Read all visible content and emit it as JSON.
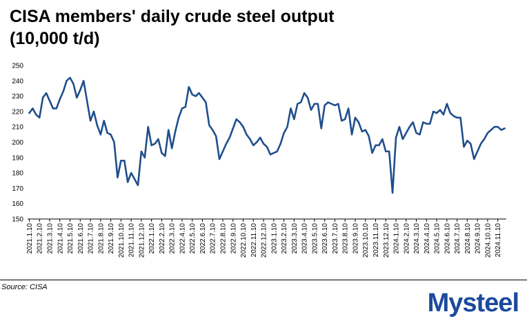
{
  "header": {
    "title_line1": "CISA members' daily crude steel output",
    "title_line2": "(10,000 t/d)"
  },
  "footer": {
    "source": "Source: CISA",
    "logo_text": "Mysteel",
    "logo_color": "#1c4a9c"
  },
  "chart_data": {
    "type": "line",
    "title": "CISA members' daily crude steel output (10,000 t/d)",
    "xlabel": "",
    "ylabel": "",
    "ylim": [
      150,
      250
    ],
    "yticks": [
      150,
      160,
      170,
      180,
      190,
      200,
      210,
      220,
      230,
      240,
      250
    ],
    "grid": false,
    "legend": "none",
    "line_color": "#1f4e8c",
    "x_tick_labels": [
      "2021.1.10",
      "2021.2.10",
      "2021.3.10",
      "2021.4.10",
      "2021.5.10",
      "2021.6.10",
      "2021.7.10",
      "2021.8.10",
      "2021.9.10",
      "2021.10.10",
      "2021.11.10",
      "2021.12.10",
      "2022.1.10",
      "2022.2.10",
      "2022.3.10",
      "2022.4.10",
      "2022.5.10",
      "2022.6.10",
      "2022.7.10",
      "2022.8.10",
      "2022.9.10",
      "2022.10.10",
      "2022.11.10",
      "2022.12.10",
      "2023.1.10",
      "2023.2.10",
      "2023.3.10",
      "2023.4.10",
      "2023.5.10",
      "2023.6.10",
      "2023.7.10",
      "2023.8.10",
      "2023.9.10",
      "2023.10.10",
      "2023.11.10",
      "2023.12.10",
      "2024.1.10",
      "2024.2.10",
      "2024.3.10",
      "2024.4.10",
      "2024.5.10",
      "2024.6.10",
      "2024.7.10",
      "2024.8.10",
      "2024.9.10",
      "2024.10.10",
      "2024.11.10"
    ],
    "series": [
      {
        "values": [
          219,
          222,
          218,
          216,
          229,
          232,
          227,
          222,
          222,
          228,
          233,
          240,
          242,
          238,
          229,
          234,
          240,
          227,
          214,
          220,
          211,
          205,
          214,
          206,
          205,
          200,
          177,
          188,
          188,
          174,
          180,
          176,
          172,
          194,
          190,
          210,
          198,
          199,
          202,
          193,
          191,
          208,
          196,
          207,
          216,
          222,
          223,
          236,
          231,
          230,
          232,
          229,
          226,
          211,
          208,
          204,
          189,
          194,
          199,
          203,
          209,
          215,
          213,
          210,
          205,
          202,
          198,
          200,
          203,
          199,
          197,
          192,
          193,
          194,
          199,
          206,
          210,
          222,
          215,
          225,
          226,
          232,
          229,
          221,
          225,
          225,
          209,
          224,
          226,
          225,
          224,
          225,
          214,
          215,
          222,
          205,
          216,
          213,
          207,
          208,
          204,
          193,
          198,
          198,
          202,
          194,
          194,
          167,
          203,
          210,
          202,
          206,
          210,
          213,
          206,
          205,
          213,
          212,
          212,
          220,
          219,
          221,
          218,
          225,
          219,
          217,
          216,
          216,
          197,
          201,
          199,
          189,
          194,
          199,
          202,
          206,
          208,
          210,
          210,
          208,
          209
        ]
      }
    ]
  }
}
